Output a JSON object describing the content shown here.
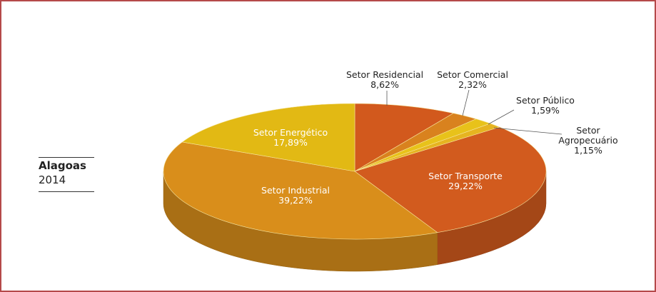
{
  "chart_data": {
    "type": "pie3d",
    "title": "Alagoas",
    "subtitle": "2014",
    "categories": [
      "Setor Residencial",
      "Setor Comercial",
      "Setor Público",
      "Setor Agropecuário",
      "Setor Transporte",
      "Setor Industrial",
      "Setor Energético"
    ],
    "values": [
      8.62,
      2.32,
      1.59,
      1.15,
      29.22,
      39.22,
      17.89
    ],
    "value_labels": [
      "8,62%",
      "2,32%",
      "1,59%",
      "1,15%",
      "29,22%",
      "39,22%",
      "17,89%"
    ],
    "colors": [
      "#d2591d",
      "#d9821e",
      "#e8c21a",
      "#e6b420",
      "#d25b1e",
      "#d98e1b",
      "#e2b914"
    ]
  }
}
